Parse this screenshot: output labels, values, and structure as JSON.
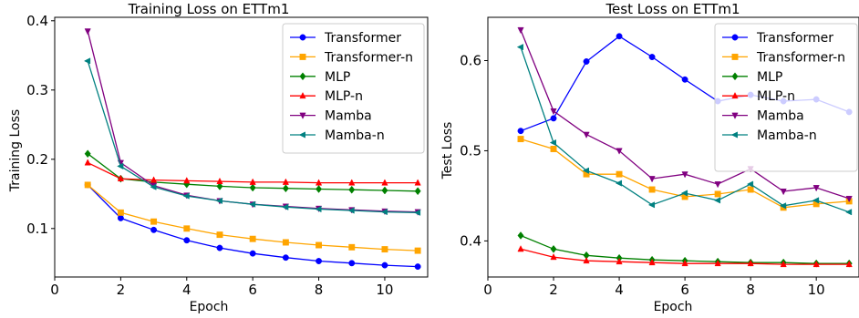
{
  "chart_data": [
    {
      "type": "line",
      "title": "Training Loss on ETTm1",
      "xlabel": "Epoch",
      "ylabel": "Training Loss",
      "xlim": [
        0,
        11.3
      ],
      "ylim": [
        0.03,
        0.405
      ],
      "xticks": [
        0,
        2,
        4,
        6,
        8,
        10
      ],
      "yticks": [
        0.1,
        0.2,
        0.3,
        0.4
      ],
      "grid": false,
      "legend_position": "top-right",
      "x": [
        1,
        2,
        3,
        4,
        5,
        6,
        7,
        8,
        9,
        10,
        11
      ],
      "series": [
        {
          "name": "Transformer",
          "color": "#0000ff",
          "marker": "circle",
          "values": [
            0.163,
            0.115,
            0.098,
            0.083,
            0.072,
            0.064,
            0.058,
            0.053,
            0.05,
            0.047,
            0.045
          ]
        },
        {
          "name": "Transformer-n",
          "color": "#ffa500",
          "marker": "square",
          "values": [
            0.163,
            0.123,
            0.11,
            0.1,
            0.091,
            0.085,
            0.08,
            0.076,
            0.073,
            0.07,
            0.068
          ]
        },
        {
          "name": "MLP",
          "color": "#008000",
          "marker": "diamond",
          "values": [
            0.208,
            0.172,
            0.167,
            0.164,
            0.161,
            0.159,
            0.158,
            0.157,
            0.156,
            0.155,
            0.154
          ]
        },
        {
          "name": "MLP-n",
          "color": "#ff0000",
          "marker": "triangle-up",
          "values": [
            0.195,
            0.172,
            0.17,
            0.169,
            0.168,
            0.167,
            0.167,
            0.166,
            0.166,
            0.166,
            0.166
          ]
        },
        {
          "name": "Mamba",
          "color": "#800080",
          "marker": "triangle-down",
          "values": [
            0.385,
            0.195,
            0.162,
            0.148,
            0.14,
            0.135,
            0.132,
            0.129,
            0.127,
            0.125,
            0.124
          ]
        },
        {
          "name": "Mamba-n",
          "color": "#008080",
          "marker": "triangle-left",
          "values": [
            0.342,
            0.19,
            0.16,
            0.147,
            0.14,
            0.135,
            0.131,
            0.128,
            0.126,
            0.124,
            0.123
          ]
        }
      ]
    },
    {
      "type": "line",
      "title": "Test Loss on ETTm1",
      "xlabel": "Epoch",
      "ylabel": "Test Loss",
      "xlim": [
        0,
        11.3
      ],
      "ylim": [
        0.36,
        0.648
      ],
      "xticks": [
        0,
        2,
        4,
        6,
        8,
        10
      ],
      "yticks": [
        0.4,
        0.5,
        0.6
      ],
      "grid": false,
      "legend_position": "top-right",
      "x": [
        1,
        2,
        3,
        4,
        5,
        6,
        7,
        8,
        9,
        10,
        11
      ],
      "series": [
        {
          "name": "Transformer",
          "color": "#0000ff",
          "marker": "circle",
          "values": [
            0.522,
            0.536,
            0.599,
            0.627,
            0.604,
            0.579,
            0.555,
            0.562,
            0.555,
            0.557,
            0.543
          ]
        },
        {
          "name": "Transformer-n",
          "color": "#ffa500",
          "marker": "square",
          "values": [
            0.513,
            0.502,
            0.474,
            0.474,
            0.457,
            0.449,
            0.452,
            0.457,
            0.437,
            0.441,
            0.444
          ]
        },
        {
          "name": "MLP",
          "color": "#008000",
          "marker": "diamond",
          "values": [
            0.406,
            0.391,
            0.384,
            0.381,
            0.379,
            0.378,
            0.377,
            0.376,
            0.376,
            0.375,
            0.375
          ]
        },
        {
          "name": "MLP-n",
          "color": "#ff0000",
          "marker": "triangle-up",
          "values": [
            0.391,
            0.382,
            0.378,
            0.377,
            0.376,
            0.375,
            0.375,
            0.375,
            0.374,
            0.374,
            0.374
          ]
        },
        {
          "name": "Mamba",
          "color": "#800080",
          "marker": "triangle-down",
          "values": [
            0.634,
            0.544,
            0.518,
            0.5,
            0.469,
            0.474,
            0.463,
            0.48,
            0.455,
            0.459,
            0.447
          ]
        },
        {
          "name": "Mamba-n",
          "color": "#008080",
          "marker": "triangle-left",
          "values": [
            0.615,
            0.509,
            0.478,
            0.464,
            0.44,
            0.453,
            0.445,
            0.463,
            0.439,
            0.445,
            0.432
          ]
        }
      ]
    }
  ]
}
